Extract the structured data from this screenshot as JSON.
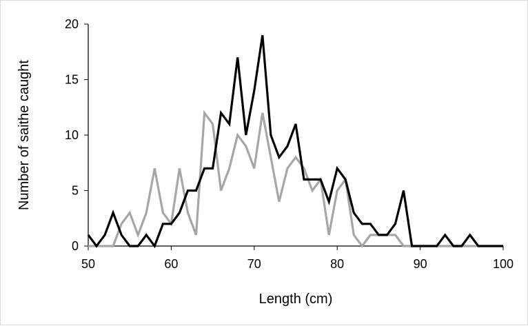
{
  "chart_data": {
    "type": "line",
    "xlabel": "Length (cm)",
    "ylabel": "Number of saithe caught",
    "xlim": [
      50,
      100
    ],
    "ylim": [
      0,
      20
    ],
    "x_ticks": [
      "50",
      "60",
      "70",
      "80",
      "90",
      "100"
    ],
    "y_ticks": [
      "0",
      "5",
      "10",
      "15",
      "20"
    ],
    "grid": false,
    "legend": "none",
    "x": [
      50,
      51,
      52,
      53,
      54,
      55,
      56,
      57,
      58,
      59,
      60,
      61,
      62,
      63,
      64,
      65,
      66,
      67,
      68,
      69,
      70,
      71,
      72,
      73,
      74,
      75,
      76,
      77,
      78,
      79,
      80,
      81,
      82,
      83,
      84,
      85,
      86,
      87,
      88,
      89,
      90,
      91,
      92,
      93,
      94,
      95,
      96,
      97,
      98,
      99,
      100
    ],
    "series": [
      {
        "color": "#000000",
        "values": [
          1,
          0,
          1,
          3,
          1,
          0,
          0,
          1,
          0,
          2,
          2,
          3,
          5,
          5,
          7,
          7,
          12,
          11,
          17,
          10,
          14,
          19,
          10,
          8,
          9,
          11,
          6,
          6,
          6,
          4,
          7,
          6,
          3,
          2,
          2,
          1,
          1,
          2,
          5,
          0,
          0,
          0,
          0,
          1,
          0,
          0,
          1,
          0,
          0,
          0,
          0
        ]
      },
      {
        "color": "#a6a6a6",
        "values": [
          0,
          0,
          0,
          0,
          2,
          3,
          1,
          3,
          7,
          3,
          2,
          7,
          3,
          1,
          12,
          11,
          5,
          7,
          10,
          9,
          7,
          12,
          8,
          4,
          7,
          8,
          7,
          5,
          6,
          1,
          5,
          6,
          1,
          0,
          1,
          1,
          1,
          1,
          0,
          0,
          0,
          0,
          0,
          0,
          0,
          0,
          0,
          0,
          0,
          0,
          0
        ]
      }
    ]
  }
}
